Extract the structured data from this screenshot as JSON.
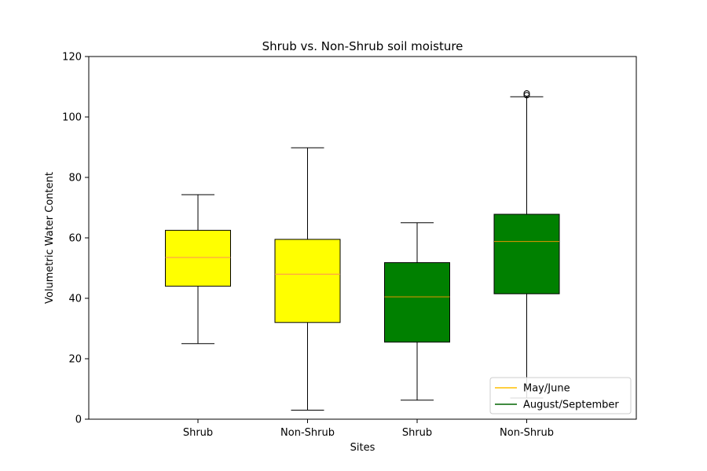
{
  "chart_data": {
    "type": "box",
    "title": "Shrub vs. Non-Shrub soil moisture",
    "xlabel": "Sites",
    "ylabel": "Volumetric Water Content",
    "ylim": [
      0,
      120
    ],
    "yticks": [
      0,
      20,
      40,
      60,
      80,
      100,
      120
    ],
    "grid": false,
    "legend_position": "lower-right",
    "legend": [
      {
        "label": "May/June",
        "color": "#ffbf00"
      },
      {
        "label": "August/September",
        "color": "#006400"
      }
    ],
    "boxes": [
      {
        "label": "Shrub",
        "group": "May/June",
        "fill": "#ffff00",
        "median_color": "#ff8c5a",
        "whisker_low": 25,
        "q1": 44,
        "median": 53.5,
        "q3": 62.5,
        "whisker_high": 74.3,
        "outliers": []
      },
      {
        "label": "Non-Shrub",
        "group": "May/June",
        "fill": "#ffff00",
        "median_color": "#ff8c5a",
        "whisker_low": 3,
        "q1": 32,
        "median": 48,
        "q3": 59.5,
        "whisker_high": 89.8,
        "outliers": []
      },
      {
        "label": "Shrub",
        "group": "August/September",
        "fill": "#008000",
        "median_color": "#e69500",
        "whisker_low": 6.3,
        "q1": 25.5,
        "median": 40.5,
        "q3": 51.8,
        "whisker_high": 65,
        "outliers": []
      },
      {
        "label": "Non-Shrub",
        "group": "August/September",
        "fill": "#008000",
        "median_color": "#e69500",
        "whisker_low": 7,
        "q1": 41.5,
        "median": 58.8,
        "q3": 67.8,
        "whisker_high": 106.7,
        "outliers": [
          107.2,
          107.8
        ]
      }
    ]
  }
}
